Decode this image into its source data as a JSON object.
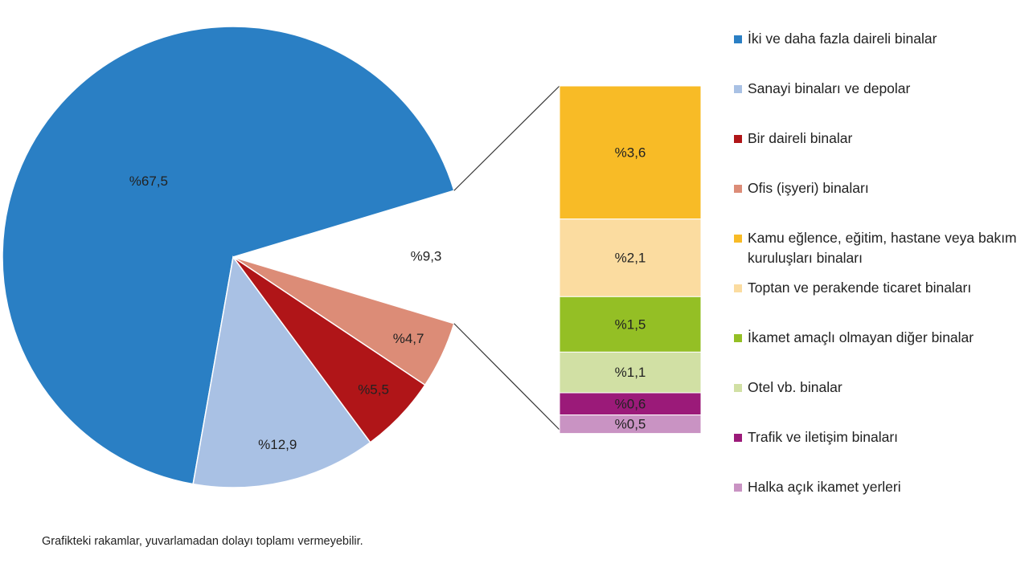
{
  "chart_data": {
    "type": "pie",
    "categories": [
      "İki ve daha fazla daireli binalar",
      "Sanayi binaları ve depolar",
      "Bir daireli binalar",
      "Ofis (işyeri) binaları"
    ],
    "values": [
      67.5,
      12.9,
      5.5,
      4.7
    ],
    "value_labels": [
      "%67,5",
      "%12,9",
      "%5,5",
      "%4,7"
    ],
    "colors": [
      "#2a7fc4",
      "#a9c1e4",
      "#b01518",
      "#dc8c77"
    ],
    "other": {
      "value": 9.3,
      "value_label": "%9,3"
    },
    "breakdown": {
      "categories": [
        "Kamu eğlence, eğitim, hastane veya bakım kuruluşları binaları",
        "Toptan ve perakende ticaret binaları",
        "İkamet amaçlı olmayan diğer binalar",
        "Otel vb. binalar",
        "Trafik ve iletişim binaları",
        "Halka açık ikamet yerleri"
      ],
      "values": [
        3.6,
        2.1,
        1.5,
        1.1,
        0.6,
        0.5
      ],
      "value_labels": [
        "%3,6",
        "%2,1",
        "%1,5",
        "%1,1",
        "%0,6",
        "%0,5"
      ],
      "colors": [
        "#f8bb26",
        "#fbdca0",
        "#94bf25",
        "#d1e0a4",
        "#9b1a79",
        "#c993c3"
      ]
    },
    "note": "Grafikteki rakamlar, yuvarlamadan dolayı toplamı vermeyebilir."
  }
}
